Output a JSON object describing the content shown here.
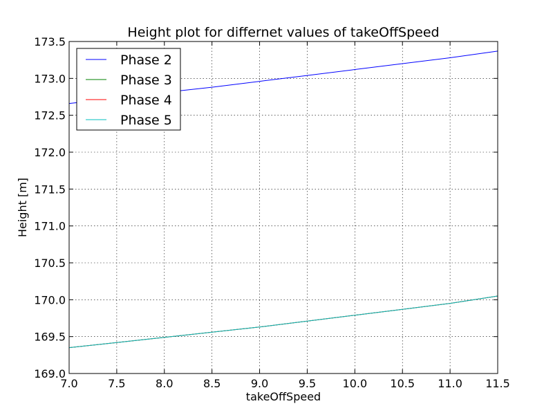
{
  "chart_data": {
    "type": "line",
    "title": "Height plot for differnet values of takeOffSpeed",
    "xlabel": "takeOffSpeed",
    "ylabel": "Height [m]",
    "xlim": [
      7.0,
      11.5
    ],
    "ylim": [
      169.0,
      173.5
    ],
    "grid": true,
    "legend_position": "upper-left",
    "xticks": [
      "7.0",
      "7.5",
      "8.0",
      "8.5",
      "9.0",
      "9.5",
      "10.0",
      "10.5",
      "11.0",
      "11.5"
    ],
    "yticks": [
      "169.0",
      "169.5",
      "170.0",
      "170.5",
      "171.0",
      "171.5",
      "172.0",
      "172.5",
      "173.0",
      "173.5"
    ],
    "x": [
      7.0,
      7.5,
      8.0,
      8.5,
      9.0,
      9.5,
      10.0,
      10.5,
      11.0,
      11.5
    ],
    "series": [
      {
        "name": "Phase 2",
        "color": "#0000ff",
        "values": [
          172.66,
          172.73,
          172.81,
          172.88,
          172.96,
          173.04,
          173.12,
          173.2,
          173.28,
          173.37
        ]
      },
      {
        "name": "Phase 3",
        "color": "#008000",
        "values": [
          169.35,
          169.42,
          169.49,
          169.56,
          169.63,
          169.71,
          169.79,
          169.87,
          169.95,
          170.05
        ]
      },
      {
        "name": "Phase 4",
        "color": "#ff0000",
        "values": [
          169.35,
          169.42,
          169.49,
          169.56,
          169.63,
          169.71,
          169.79,
          169.87,
          169.95,
          170.05
        ]
      },
      {
        "name": "Phase 5",
        "color": "#00bfbf",
        "values": [
          169.35,
          169.42,
          169.49,
          169.56,
          169.63,
          169.71,
          169.79,
          169.87,
          169.95,
          170.05
        ]
      }
    ]
  }
}
